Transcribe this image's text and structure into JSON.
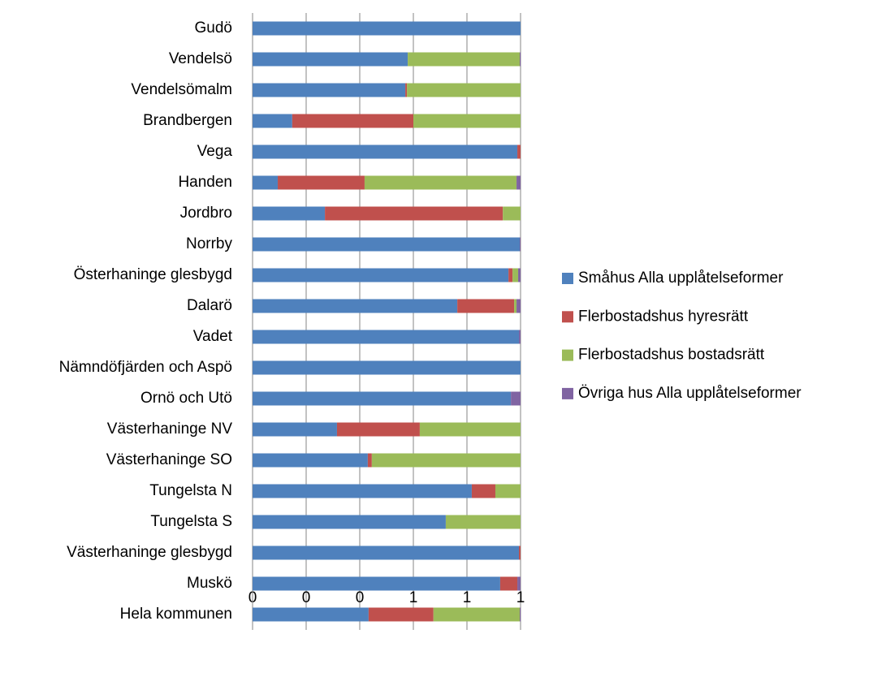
{
  "chart_data": {
    "type": "stacked-bar-horizontal",
    "categories": [
      "Gudö",
      "Vendelsö",
      "Vendelsömalm",
      "Brandbergen",
      "Vega",
      "Handen",
      "Jordbro",
      "Norrby",
      "Österhaninge glesbygd",
      "Dalarö",
      "Vadet",
      "Nämndöfjärden och Aspö",
      "Ornö och Utö",
      "Västerhaninge NV",
      "Västerhaninge SO",
      "Tungelsta N",
      "Tungelsta S",
      "Västerhaninge glesbygd",
      "Muskö",
      "Hela kommunen"
    ],
    "series": [
      {
        "name": "Småhus Alla upplåtelseformer",
        "color": "#4f81bd",
        "values": [
          1.0,
          0.579,
          0.57,
          0.148,
          0.988,
          0.094,
          0.27,
          0.997,
          0.955,
          0.764,
          0.994,
          1.0,
          0.964,
          0.315,
          0.43,
          0.818,
          0.721,
          0.994,
          0.924,
          0.433
        ]
      },
      {
        "name": "Flerbostadshus hyresrätt",
        "color": "#c0504d",
        "values": [
          0,
          0,
          0.006,
          0.452,
          0.012,
          0.324,
          0.664,
          0,
          0.015,
          0.212,
          0,
          0,
          0,
          0.309,
          0.015,
          0.088,
          0,
          0.006,
          0.064,
          0.242
        ]
      },
      {
        "name": "Flerbostadshus bostadsrätt",
        "color": "#9bbb59",
        "values": [
          0,
          0.418,
          0.424,
          0.4,
          0,
          0.567,
          0.066,
          0,
          0.021,
          0.009,
          0,
          0,
          0,
          0.376,
          0.555,
          0.094,
          0.279,
          0,
          0,
          0.322
        ]
      },
      {
        "name": "Övriga hus Alla upplåtelseformer",
        "color": "#8064a2",
        "values": [
          0,
          0.003,
          0,
          0,
          0,
          0.015,
          0,
          0.003,
          0.009,
          0.015,
          0.006,
          0,
          0.036,
          0,
          0,
          0,
          0,
          0,
          0.012,
          0.003
        ]
      }
    ],
    "xlim": [
      0,
      1
    ],
    "xticks": [
      0,
      {
        "value": 0.2,
        "label": "0"
      },
      {
        "value": 0.4,
        "label": "0"
      },
      {
        "value": 0.6,
        "label": "1"
      },
      {
        "value": 0.8,
        "label": "1"
      },
      1
    ],
    "grid": true,
    "legend": "right"
  }
}
